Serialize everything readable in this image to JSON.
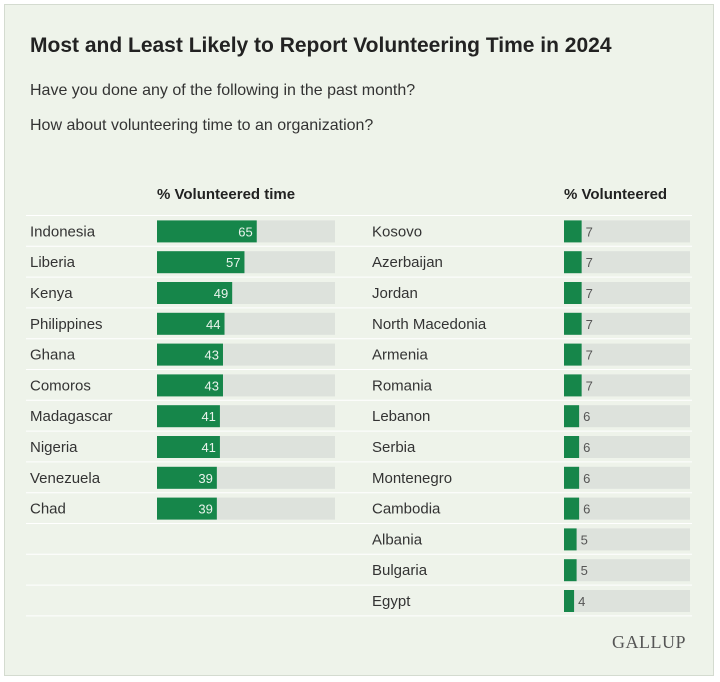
{
  "title": "Most and Least Likely to Report Volunteering Time in 2024",
  "subtitle_lines": [
    "Have you done any of the following in the past month?",
    "How about volunteering time to an organization?"
  ],
  "brand": "GALLUP",
  "colors": {
    "bar": "#16864a",
    "track": "#dde2dc",
    "background": "#eef3ea"
  },
  "chart_data": [
    {
      "type": "bar",
      "orientation": "horizontal",
      "header": "% Volunteered time",
      "categories": [
        "Indonesia",
        "Liberia",
        "Kenya",
        "Philippines",
        "Ghana",
        "Comoros",
        "Madagascar",
        "Nigeria",
        "Venezuela",
        "Chad"
      ],
      "values": [
        65,
        57,
        49,
        44,
        43,
        43,
        41,
        41,
        39,
        39
      ],
      "xlim": [
        0,
        100
      ],
      "value_labels": "inside bar end"
    },
    {
      "type": "bar",
      "orientation": "horizontal",
      "header": "% Volunteered",
      "categories": [
        "Kosovo",
        "Azerbaijan",
        "Jordan",
        "North Macedonia",
        "Armenia",
        "Romania",
        "Lebanon",
        "Serbia",
        "Montenegro",
        "Cambodia",
        "Albania",
        "Bulgaria",
        "Egypt"
      ],
      "values": [
        7,
        7,
        7,
        7,
        7,
        7,
        6,
        6,
        6,
        6,
        5,
        5,
        4
      ],
      "xlim": [
        0,
        100
      ],
      "value_labels": "right of bar"
    }
  ]
}
